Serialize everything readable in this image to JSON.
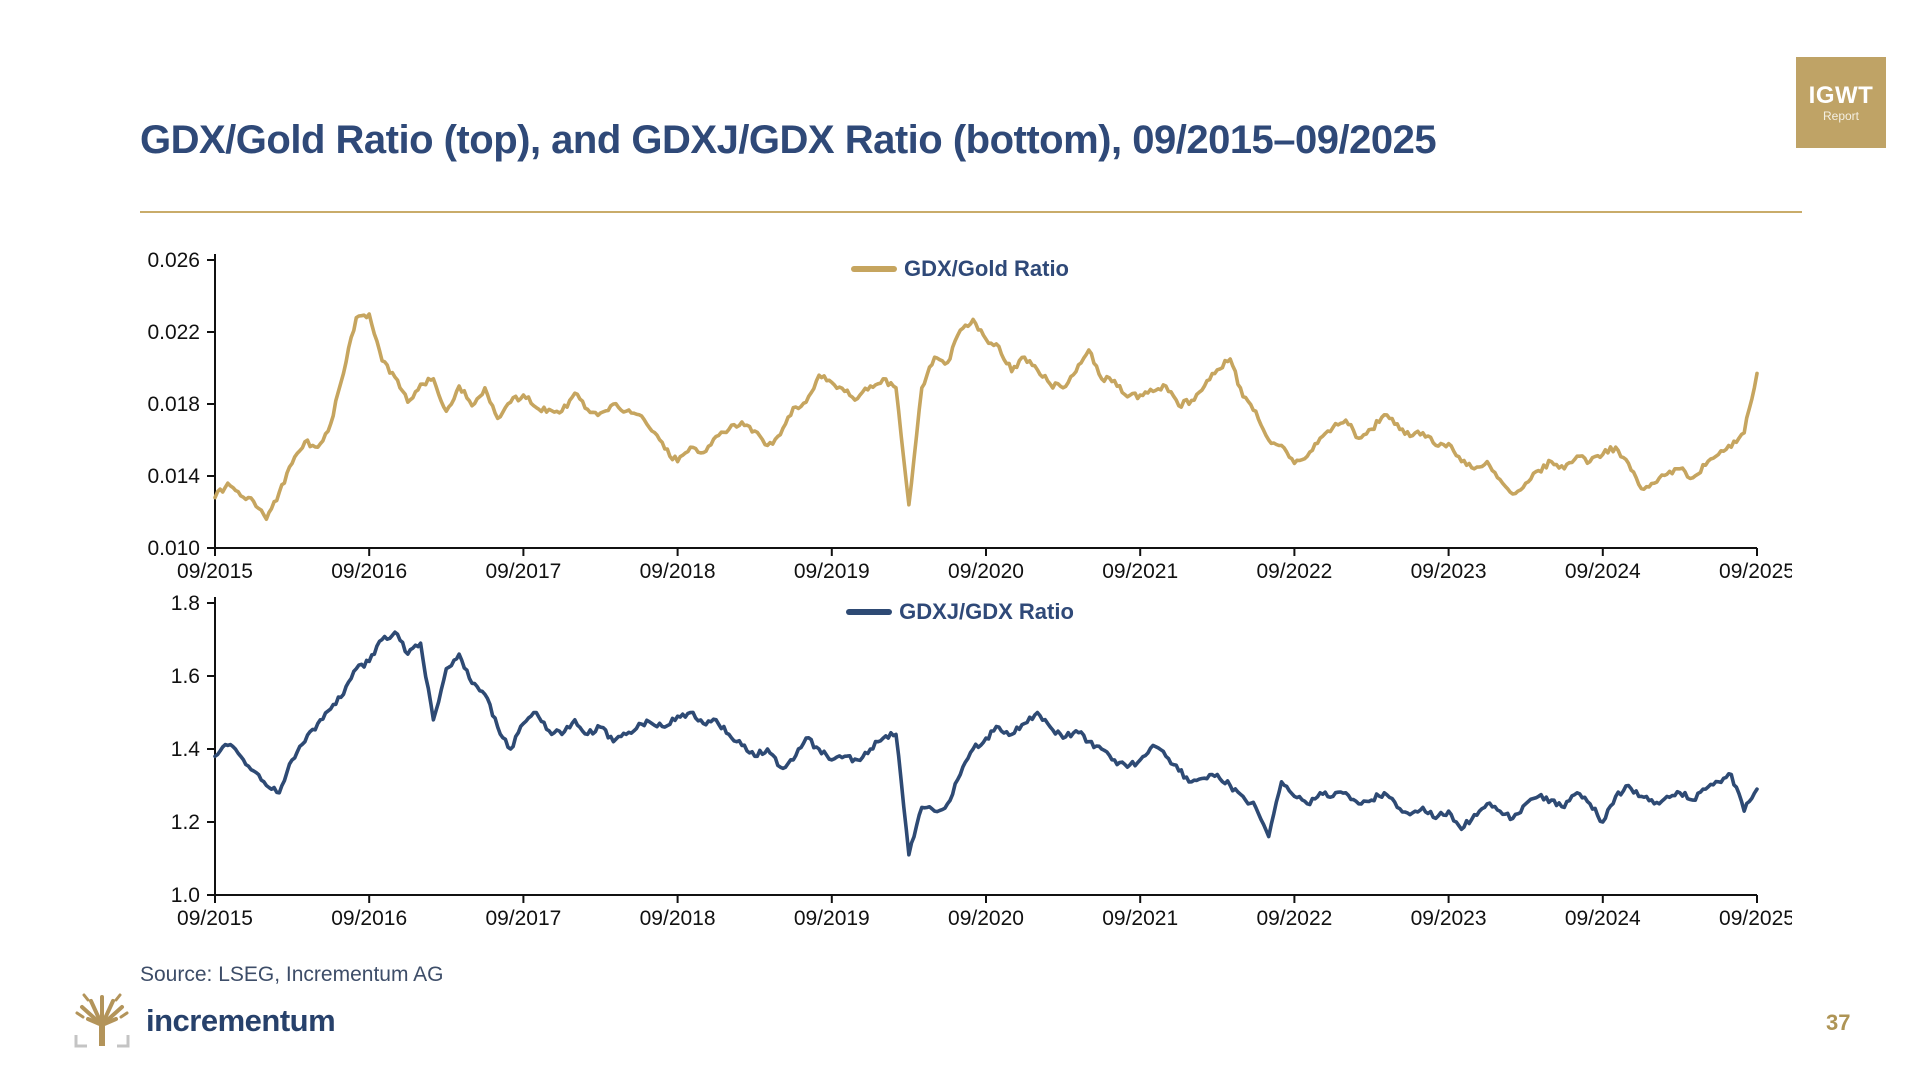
{
  "header": {
    "logo_line1": "IGWT",
    "logo_line2": "Report",
    "logo_bg": "#BFA366"
  },
  "slide": {
    "title": "GDX/Gold Ratio (top), and GDXJ/GDX Ratio (bottom), 09/2015–09/2025"
  },
  "chart_data": [
    {
      "type": "line",
      "title": "GDX/Gold Ratio",
      "x_labels": [
        "09/2015",
        "09/2016",
        "09/2017",
        "09/2018",
        "09/2019",
        "09/2020",
        "09/2021",
        "09/2022",
        "09/2023",
        "09/2024",
        "09/2025"
      ],
      "x_frequency": "monthly",
      "ylim": [
        0.01,
        0.026
      ],
      "yticks": [
        0.026,
        0.022,
        0.018,
        0.014,
        0.01
      ],
      "ytick_decimals": 3,
      "grid": false,
      "legend_position": "top-center",
      "series": [
        {
          "name": "GDX/Gold Ratio",
          "color": "#C6A55F",
          "values": [
            0.0128,
            0.0136,
            0.0129,
            0.0126,
            0.0116,
            0.0131,
            0.0147,
            0.0159,
            0.0156,
            0.0169,
            0.0197,
            0.0228,
            0.023,
            0.0204,
            0.0195,
            0.0181,
            0.0191,
            0.0194,
            0.0176,
            0.019,
            0.0179,
            0.0189,
            0.0172,
            0.0181,
            0.0185,
            0.0178,
            0.0177,
            0.0176,
            0.0186,
            0.0177,
            0.0175,
            0.018,
            0.0176,
            0.0174,
            0.0165,
            0.0155,
            0.0148,
            0.0156,
            0.0153,
            0.0162,
            0.0166,
            0.017,
            0.0165,
            0.0157,
            0.0163,
            0.0178,
            0.0181,
            0.0196,
            0.0192,
            0.0187,
            0.0183,
            0.019,
            0.0194,
            0.0189,
            0.0124,
            0.0189,
            0.0206,
            0.0203,
            0.0221,
            0.0227,
            0.0216,
            0.0212,
            0.0198,
            0.0206,
            0.0199,
            0.0191,
            0.0189,
            0.0198,
            0.021,
            0.0194,
            0.0193,
            0.0184,
            0.0185,
            0.0187,
            0.019,
            0.0179,
            0.0182,
            0.019,
            0.0199,
            0.0205,
            0.0184,
            0.0176,
            0.016,
            0.0157,
            0.0147,
            0.0151,
            0.0161,
            0.0167,
            0.0171,
            0.0161,
            0.0166,
            0.0174,
            0.0169,
            0.0162,
            0.0164,
            0.0157,
            0.0158,
            0.0148,
            0.0144,
            0.0148,
            0.0138,
            0.013,
            0.0136,
            0.0143,
            0.0148,
            0.0144,
            0.0151,
            0.0148,
            0.0152,
            0.0156,
            0.0147,
            0.0133,
            0.0136,
            0.0141,
            0.0144,
            0.0139,
            0.0146,
            0.0152,
            0.0156,
            0.0164,
            0.0197
          ]
        }
      ]
    },
    {
      "type": "line",
      "title": "GDXJ/GDX Ratio",
      "x_labels": [
        "09/2015",
        "09/2016",
        "09/2017",
        "09/2018",
        "09/2019",
        "09/2020",
        "09/2021",
        "09/2022",
        "09/2023",
        "09/2024",
        "09/2025"
      ],
      "x_frequency": "monthly",
      "ylim": [
        1.0,
        1.8
      ],
      "yticks": [
        1.8,
        1.6,
        1.4,
        1.2,
        1.0
      ],
      "ytick_decimals": 1,
      "grid": false,
      "legend_position": "top-center",
      "series": [
        {
          "name": "GDXJ/GDX Ratio",
          "color": "#2E4A74",
          "values": [
            1.38,
            1.41,
            1.38,
            1.34,
            1.3,
            1.28,
            1.37,
            1.42,
            1.47,
            1.51,
            1.55,
            1.62,
            1.64,
            1.7,
            1.72,
            1.66,
            1.69,
            1.48,
            1.62,
            1.66,
            1.58,
            1.55,
            1.46,
            1.4,
            1.47,
            1.5,
            1.45,
            1.44,
            1.48,
            1.44,
            1.46,
            1.42,
            1.44,
            1.47,
            1.47,
            1.46,
            1.49,
            1.5,
            1.47,
            1.48,
            1.44,
            1.41,
            1.38,
            1.4,
            1.35,
            1.37,
            1.43,
            1.4,
            1.37,
            1.38,
            1.37,
            1.4,
            1.43,
            1.44,
            1.11,
            1.24,
            1.23,
            1.25,
            1.33,
            1.4,
            1.43,
            1.46,
            1.44,
            1.47,
            1.5,
            1.46,
            1.43,
            1.45,
            1.42,
            1.4,
            1.37,
            1.35,
            1.37,
            1.41,
            1.38,
            1.34,
            1.31,
            1.32,
            1.33,
            1.3,
            1.27,
            1.24,
            1.16,
            1.31,
            1.27,
            1.25,
            1.28,
            1.27,
            1.28,
            1.25,
            1.26,
            1.28,
            1.24,
            1.22,
            1.24,
            1.21,
            1.23,
            1.18,
            1.22,
            1.25,
            1.23,
            1.21,
            1.25,
            1.27,
            1.26,
            1.24,
            1.28,
            1.25,
            1.2,
            1.27,
            1.3,
            1.27,
            1.25,
            1.27,
            1.28,
            1.26,
            1.29,
            1.31,
            1.33,
            1.23,
            1.29
          ]
        }
      ]
    }
  ],
  "footer": {
    "source": "Source: LSEG, Incrementum AG",
    "brand": "incrementum",
    "page_number": "37"
  },
  "colors": {
    "title_navy": "#2F4978",
    "gold_line": "#C6A55F",
    "navy_line": "#2E4A74",
    "rule_gold": "#C9AC6A",
    "page_gold": "#AE9455",
    "axis_black": "#111111"
  }
}
